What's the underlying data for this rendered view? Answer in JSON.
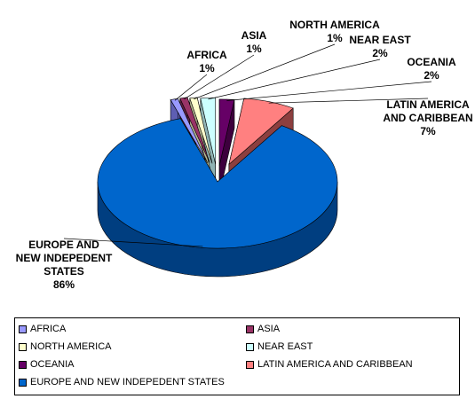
{
  "chart_data": {
    "type": "pie",
    "style": "3d-exploded",
    "title": "",
    "slices": [
      {
        "name": "AFRICA",
        "value": 1,
        "label": "AFRICA\n1%",
        "color": "#9999FF",
        "side": "#5E5EB3"
      },
      {
        "name": "ASIA",
        "value": 1,
        "label": "ASIA\n1%",
        "color": "#993366",
        "side": "#5E1F3F"
      },
      {
        "name": "NORTH AMERICA",
        "value": 1,
        "label": "NORTH AMERICA\n1%",
        "color": "#FFFFCC",
        "side": "#B3B38F"
      },
      {
        "name": "NEAR EAST",
        "value": 2,
        "label": "NEAR EAST\n2%",
        "color": "#CCFFFF",
        "side": "#8FB3B3"
      },
      {
        "name": "OCEANIA",
        "value": 2,
        "label": "OCEANIA\n2%",
        "color": "#660066",
        "side": "#3D003D"
      },
      {
        "name": "LATIN AMERICA AND CARIBBEAN",
        "value": 7,
        "label": "LATIN AMERICA\nAND CARIBBEAN\n7%",
        "color": "#FF8080",
        "side": "#8C3F3F"
      },
      {
        "name": "EUROPE AND NEW INDEPEDENT STATES",
        "value": 86,
        "label": "EUROPE AND\nNEW INDEPEDENT\nSTATES\n86%",
        "color": "#0066CC",
        "side": "#003E80"
      }
    ],
    "legend_position": "bottom"
  }
}
